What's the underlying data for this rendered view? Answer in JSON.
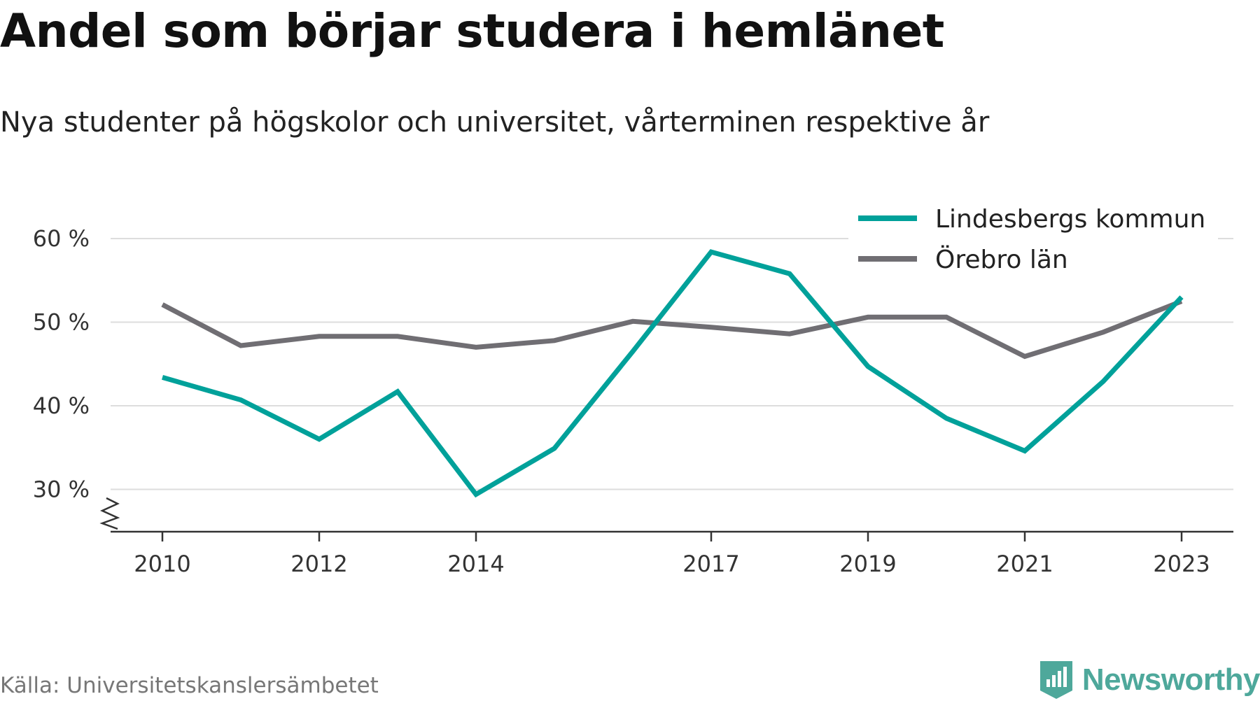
{
  "chart_data": {
    "type": "line",
    "title": "Andel som börjar studera i hemlänet",
    "subtitle": "Nya studenter på högskolor och universitet, vårterminen respektive år",
    "x": [
      2010,
      2011,
      2012,
      2013,
      2014,
      2015,
      2016,
      2017,
      2018,
      2019,
      2020,
      2021,
      2022,
      2023
    ],
    "x_tick_labels": [
      "2010",
      "2012",
      "2014",
      "2017",
      "2019",
      "2021",
      "2023"
    ],
    "y_tick_labels": [
      "60 %",
      "50 %",
      "40 %",
      "30 %"
    ],
    "y_ticks": [
      60,
      50,
      40,
      30
    ],
    "ylim": [
      25,
      62
    ],
    "grid": true,
    "legend_position": "top-right",
    "series": [
      {
        "name": "Lindesbergs kommun",
        "color": "#00a19a",
        "values": [
          43.4,
          40.7,
          36.0,
          41.7,
          29.4,
          34.9,
          46.5,
          58.4,
          55.8,
          44.7,
          38.5,
          34.6,
          42.9,
          53.0
        ]
      },
      {
        "name": "Örebro län",
        "color": "#706e73",
        "values": [
          52.1,
          47.2,
          48.3,
          48.3,
          47.0,
          47.8,
          50.1,
          49.4,
          48.6,
          50.6,
          50.6,
          45.9,
          48.8,
          52.5
        ]
      }
    ]
  },
  "source": "Källa: Universitetskanslersämbetet",
  "brand": {
    "name": "Newsworthy",
    "icon": "newsworthy-logo-icon",
    "color": "#4ea89b"
  }
}
